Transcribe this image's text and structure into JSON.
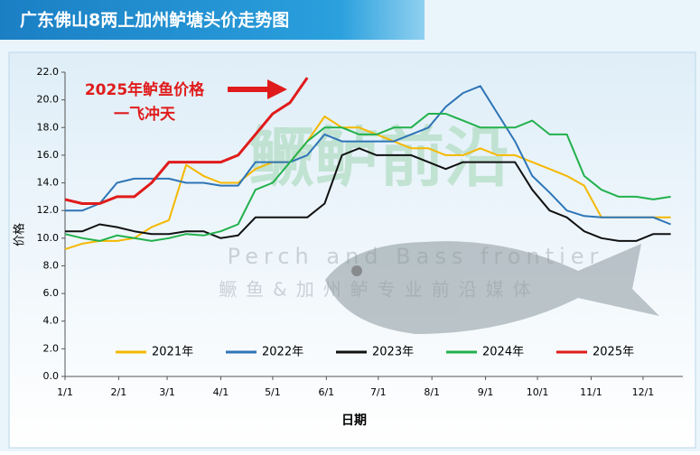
{
  "chart_data": {
    "type": "line",
    "title": "广东佛山8两上加州鲈塘头价走势图",
    "y_label": "价格",
    "x_label": "日期",
    "annotation": [
      "2025年鲈鱼价格",
      "一飞冲天"
    ],
    "watermark": [
      "鳜鲈前沿",
      "Perch and Bass frontier",
      "鳜鱼&加州鲈专业前沿媒体"
    ],
    "x": [
      1,
      11,
      21,
      31,
      41,
      51,
      61,
      71,
      81,
      91,
      101,
      111,
      121,
      131,
      141,
      151,
      161,
      171,
      181,
      191,
      201,
      211,
      221,
      231,
      241,
      251,
      261,
      271,
      281,
      291,
      301,
      311,
      321,
      331,
      341,
      351
    ],
    "xlim": [
      1,
      358
    ],
    "xticks": [
      {
        "value": 1,
        "label": "1/1"
      },
      {
        "value": 32,
        "label": "2/1"
      },
      {
        "value": 60,
        "label": "3/1"
      },
      {
        "value": 91,
        "label": "4/1"
      },
      {
        "value": 121,
        "label": "5/1"
      },
      {
        "value": 152,
        "label": "6/1"
      },
      {
        "value": 182,
        "label": "7/1"
      },
      {
        "value": 213,
        "label": "8/1"
      },
      {
        "value": 244,
        "label": "9/1"
      },
      {
        "value": 274,
        "label": "10/1"
      },
      {
        "value": 305,
        "label": "11/1"
      },
      {
        "value": 335,
        "label": "12/1"
      }
    ],
    "ylim": [
      0,
      22
    ],
    "yticks": [
      {
        "value": 0,
        "label": "0.0"
      },
      {
        "value": 2,
        "label": "2.0"
      },
      {
        "value": 4,
        "label": "4.0"
      },
      {
        "value": 6,
        "label": "6.0"
      },
      {
        "value": 8,
        "label": "8.0"
      },
      {
        "value": 10,
        "label": "10.0"
      },
      {
        "value": 12,
        "label": "12.0"
      },
      {
        "value": 14,
        "label": "14.0"
      },
      {
        "value": 16,
        "label": "16.0"
      },
      {
        "value": 18,
        "label": "18.0"
      },
      {
        "value": 20,
        "label": "20.0"
      },
      {
        "value": 22,
        "label": "22.0"
      }
    ],
    "series": [
      {
        "name": "2021年",
        "color": "#f5b800",
        "values": [
          9.2,
          9.6,
          9.8,
          9.8,
          10.0,
          10.8,
          11.3,
          15.3,
          14.5,
          14.0,
          14.0,
          15.0,
          15.5,
          15.5,
          17.0,
          18.8,
          18.0,
          18.0,
          17.5,
          17.0,
          16.5,
          16.5,
          16.0,
          16.0,
          16.5,
          16.0,
          16.0,
          15.5,
          15.0,
          14.5,
          13.8,
          11.5,
          11.5,
          11.5,
          11.5,
          11.5
        ]
      },
      {
        "name": "2022年",
        "color": "#2e75b6",
        "values": [
          12.0,
          12.0,
          12.5,
          14.0,
          14.3,
          14.3,
          14.3,
          14.0,
          14.0,
          13.8,
          13.8,
          15.5,
          15.5,
          15.5,
          16.0,
          17.5,
          17.0,
          17.0,
          17.0,
          17.0,
          17.5,
          18.0,
          19.5,
          20.5,
          21.0,
          19.0,
          17.0,
          14.5,
          13.3,
          12.0,
          11.6,
          11.5,
          11.5,
          11.5,
          11.5,
          11.0
        ]
      },
      {
        "name": "2023年",
        "color": "#111111",
        "values": [
          10.5,
          10.5,
          11.0,
          10.8,
          10.5,
          10.3,
          10.3,
          10.5,
          10.5,
          10.0,
          10.2,
          11.5,
          11.5,
          11.5,
          11.5,
          12.5,
          16.0,
          16.5,
          16.0,
          16.0,
          16.0,
          15.5,
          15.0,
          15.5,
          15.5,
          15.5,
          15.5,
          13.5,
          12.0,
          11.5,
          10.5,
          10.0,
          9.8,
          9.8,
          10.3,
          10.3
        ]
      },
      {
        "name": "2024年",
        "color": "#22b14c",
        "values": [
          10.3,
          10.0,
          9.8,
          10.2,
          10.0,
          9.8,
          10.0,
          10.3,
          10.2,
          10.5,
          11.0,
          13.5,
          14.0,
          15.5,
          17.0,
          18.0,
          18.0,
          17.5,
          17.5,
          18.0,
          18.0,
          19.0,
          19.0,
          18.5,
          18.0,
          18.0,
          18.0,
          18.5,
          17.5,
          17.5,
          14.5,
          13.5,
          13.0,
          13.0,
          12.8,
          13.0
        ]
      },
      {
        "name": "2025年",
        "color": "#e01b1b",
        "values": [
          12.8,
          12.5,
          12.5,
          13.0,
          13.0,
          14.0,
          15.5,
          15.5,
          15.5,
          15.5,
          16.0,
          17.5,
          19.0,
          19.8,
          21.6,
          null,
          null,
          null,
          null,
          null,
          null,
          null,
          null,
          null,
          null,
          null,
          null,
          null,
          null,
          null,
          null,
          null,
          null,
          null,
          null,
          null
        ]
      }
    ]
  }
}
